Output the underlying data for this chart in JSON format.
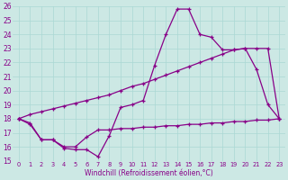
{
  "xlabel": "Windchill (Refroidissement éolien,°C)",
  "xlim": [
    -0.5,
    23.5
  ],
  "ylim": [
    15,
    26
  ],
  "xticks": [
    0,
    1,
    2,
    3,
    4,
    5,
    6,
    7,
    8,
    9,
    10,
    11,
    12,
    13,
    14,
    15,
    16,
    17,
    18,
    19,
    20,
    21,
    22,
    23
  ],
  "yticks": [
    15,
    16,
    17,
    18,
    19,
    20,
    21,
    22,
    23,
    24,
    25,
    26
  ],
  "bg_color": "#cce8e4",
  "line_color": "#880088",
  "grid_color": "#aad8d4",
  "series": {
    "line1": [
      18.0,
      17.7,
      16.5,
      16.5,
      15.9,
      15.8,
      15.8,
      15.3,
      16.8,
      18.8,
      19.0,
      19.3,
      21.8,
      24.0,
      25.8,
      25.8,
      24.0,
      23.8,
      22.9,
      22.9,
      23.0,
      21.5,
      19.0,
      18.0
    ],
    "line2": [
      18.0,
      18.3,
      18.5,
      18.7,
      18.9,
      19.1,
      19.3,
      19.5,
      19.7,
      20.0,
      20.3,
      20.5,
      20.8,
      21.1,
      21.4,
      21.7,
      22.0,
      22.3,
      22.6,
      22.9,
      23.0,
      23.0,
      23.0,
      18.0
    ],
    "line3": [
      18.0,
      17.6,
      16.5,
      16.5,
      16.0,
      16.0,
      16.7,
      17.2,
      17.2,
      17.3,
      17.3,
      17.4,
      17.4,
      17.5,
      17.5,
      17.6,
      17.6,
      17.7,
      17.7,
      17.8,
      17.8,
      17.9,
      17.9,
      18.0
    ]
  }
}
